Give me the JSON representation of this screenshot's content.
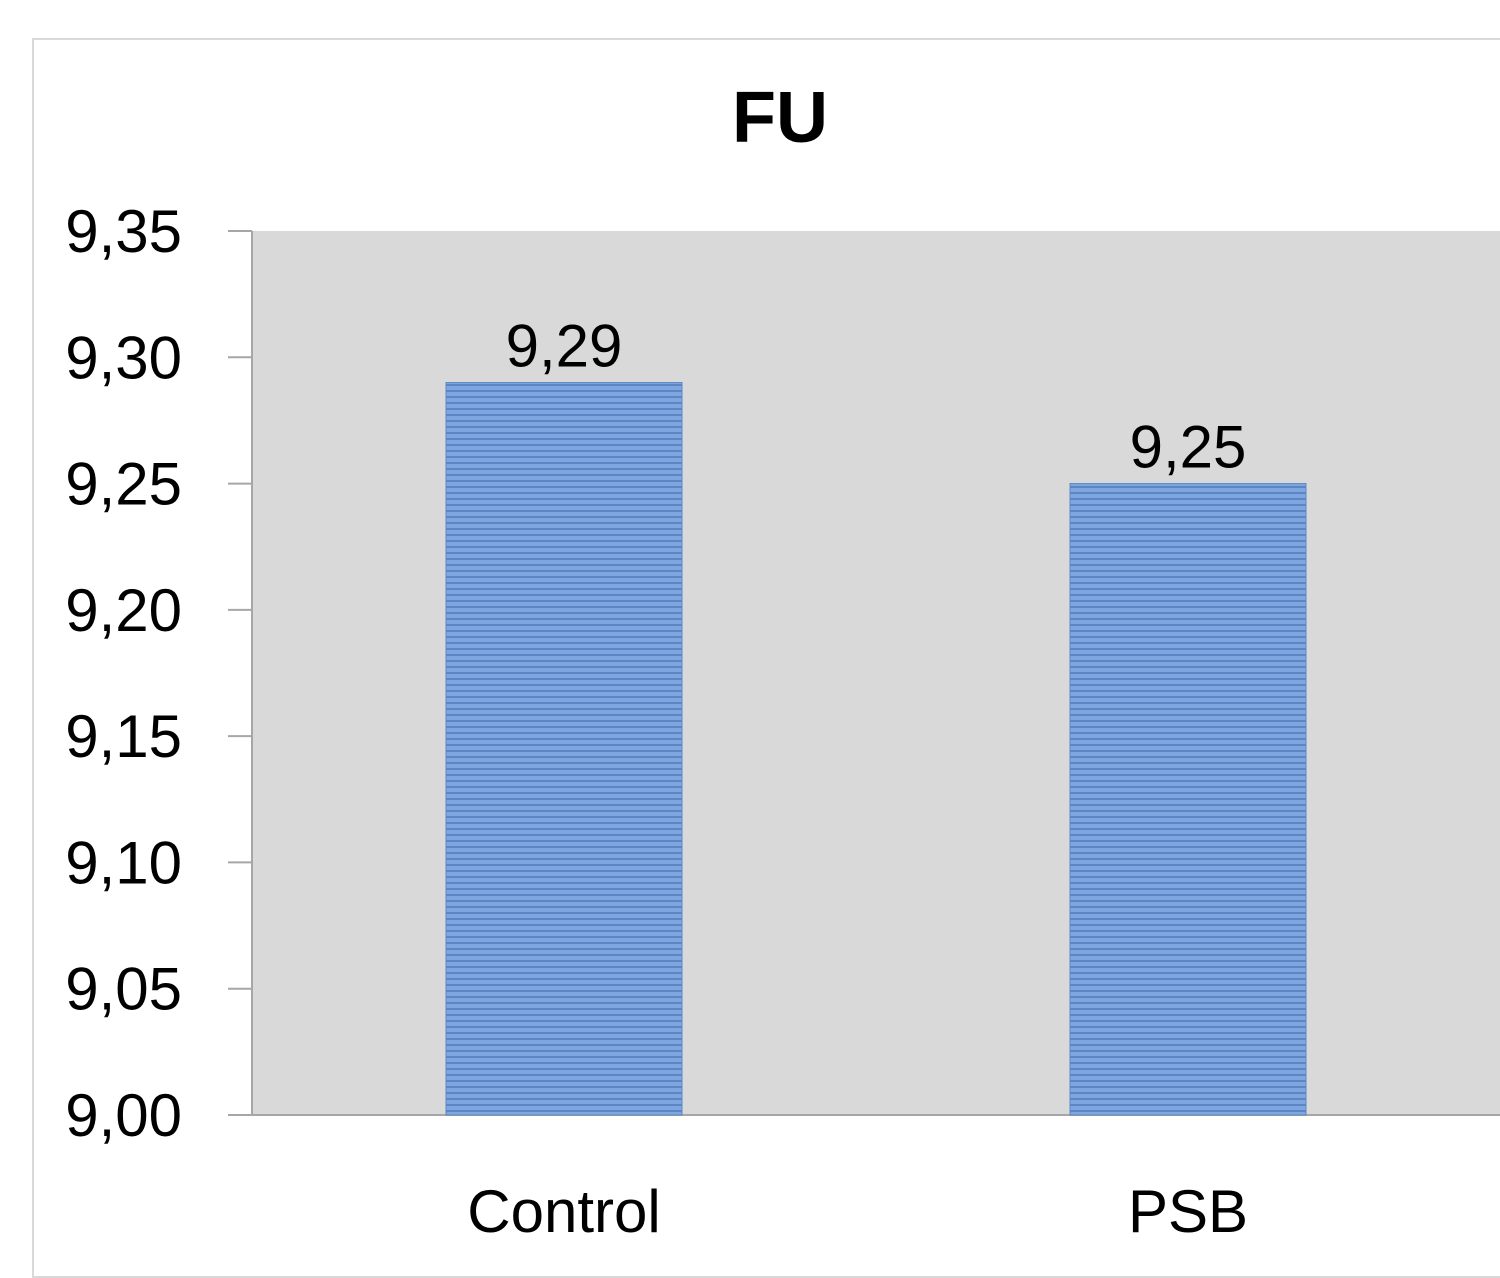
{
  "chart_data": {
    "type": "bar",
    "title": "FU",
    "xlabel": "",
    "ylabel": "",
    "categories": [
      "Control",
      "PSB"
    ],
    "values": [
      9.29,
      9.25
    ],
    "value_labels": [
      "9,29",
      "9,25"
    ],
    "ylim": [
      9.0,
      9.35
    ],
    "yticks": [
      9.0,
      9.05,
      9.1,
      9.15,
      9.2,
      9.25,
      9.3,
      9.35
    ],
    "ytick_labels": [
      "9,00",
      "9,05",
      "9,10",
      "9,15",
      "9,20",
      "9,25",
      "9,30",
      "9,35"
    ],
    "grid": false,
    "legend": "none",
    "colors": {
      "bar_fill": "#7fa6de",
      "bar_stripe": "#5b86c5",
      "plot_background": "#d9d9d9",
      "axis": "#a6a6a6"
    }
  }
}
